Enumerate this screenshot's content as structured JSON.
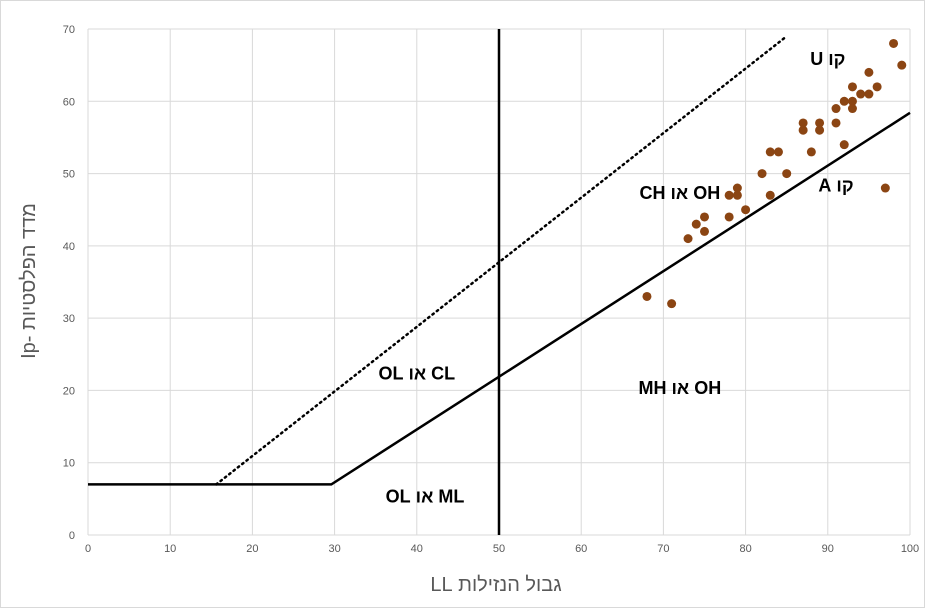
{
  "chart_data": {
    "type": "scatter",
    "xlabel": "גבול הנזילות LL",
    "ylabel": "מדד הפלסטיות -Ip",
    "xlim": [
      0,
      100
    ],
    "ylim": [
      0,
      70
    ],
    "x_ticks": [
      0,
      10,
      20,
      30,
      40,
      50,
      60,
      70,
      80,
      90,
      100
    ],
    "y_ticks": [
      0,
      10,
      20,
      30,
      40,
      50,
      60,
      70
    ],
    "grid": true,
    "colors": {
      "points": "#8B4513",
      "lines": "#000000",
      "grid": "#d9d9d9"
    },
    "series": [
      {
        "points": [
          [
            68,
            33
          ],
          [
            71,
            32
          ],
          [
            73,
            41
          ],
          [
            74,
            43
          ],
          [
            75,
            42
          ],
          [
            75,
            44
          ],
          [
            78,
            44
          ],
          [
            78,
            47
          ],
          [
            79,
            48
          ],
          [
            79,
            47
          ],
          [
            80,
            45
          ],
          [
            82,
            50
          ],
          [
            83,
            53
          ],
          [
            83,
            47
          ],
          [
            84,
            53
          ],
          [
            85,
            50
          ],
          [
            87,
            57
          ],
          [
            87,
            56
          ],
          [
            88,
            53
          ],
          [
            89,
            57
          ],
          [
            89,
            56
          ],
          [
            91,
            59
          ],
          [
            91,
            57
          ],
          [
            92,
            60
          ],
          [
            92,
            54
          ],
          [
            93,
            62
          ],
          [
            93,
            60
          ],
          [
            93,
            59
          ],
          [
            94,
            61
          ],
          [
            95,
            64
          ],
          [
            95,
            61
          ],
          [
            96,
            62
          ],
          [
            97,
            48
          ],
          [
            98,
            68
          ],
          [
            99,
            65
          ]
        ]
      }
    ],
    "lines": [
      {
        "name": "קו A",
        "style": "solid",
        "points": [
          [
            0,
            7
          ],
          [
            29.6,
            7
          ],
          [
            100,
            58.4
          ]
        ]
      },
      {
        "name": "קו U",
        "style": "dotted",
        "points": [
          [
            15.6,
            7
          ],
          [
            85,
            69
          ]
        ]
      },
      {
        "style": "solid",
        "points": [
          [
            50,
            0
          ],
          [
            50,
            70
          ]
        ]
      }
    ],
    "annotations": [
      {
        "text": "קו U",
        "x": 90,
        "y": 65
      },
      {
        "text": "קו A",
        "x": 91,
        "y": 47.5
      },
      {
        "text": "OH או CH",
        "x": 72,
        "y": 46.5
      },
      {
        "text": "CL או OL",
        "x": 40,
        "y": 21.5
      },
      {
        "text": "OH או MH",
        "x": 72,
        "y": 19.5
      },
      {
        "text": "ML או OL",
        "x": 41,
        "y": 4.5
      }
    ]
  }
}
